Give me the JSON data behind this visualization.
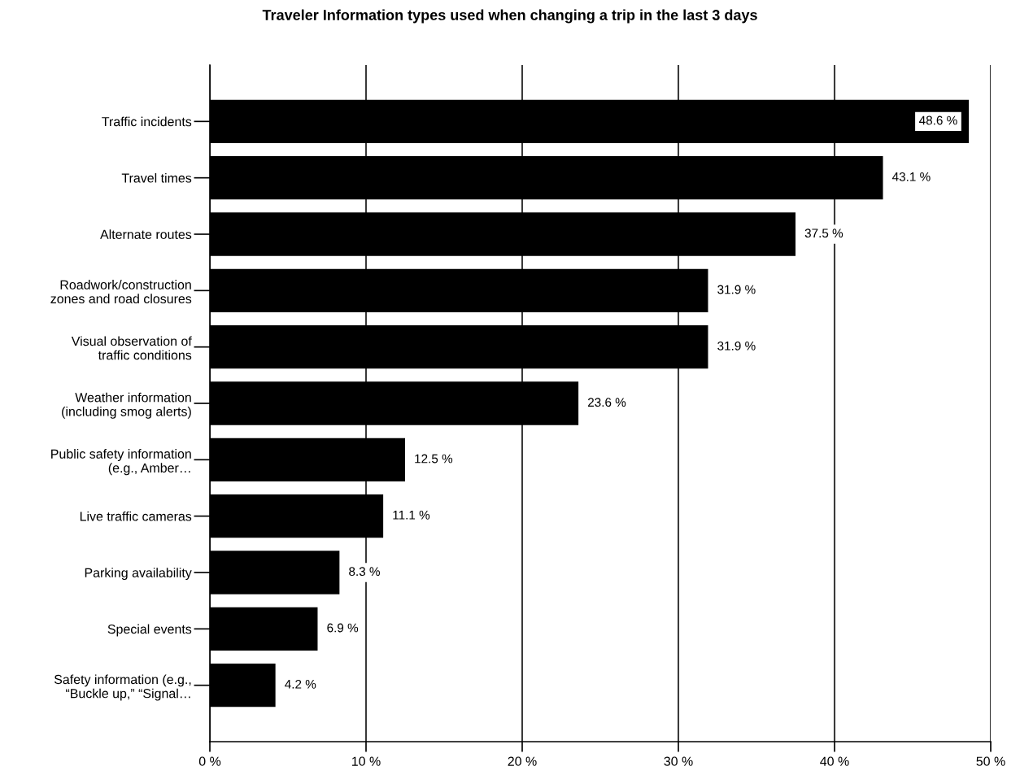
{
  "chart_data": {
    "type": "bar",
    "orientation": "horizontal",
    "title": "Traveler Information types used when changing a trip in the last 3 days",
    "categories": [
      "Traffic incidents",
      "Travel times",
      "Alternate routes",
      "Roadwork/construction\nzones and road closures",
      "Visual observation of\ntraffic conditions",
      "Weather information\n(including smog alerts)",
      "Public safety information\n(e.g., Amber…",
      "Live traffic cameras",
      "Parking availability",
      "Special events",
      "Safety information (e.g.,\n“Buckle up,” “Signal…"
    ],
    "values": [
      48.6,
      43.1,
      37.5,
      31.9,
      31.9,
      23.6,
      12.5,
      11.1,
      8.3,
      6.9,
      4.2
    ],
    "value_labels": [
      "48.6 %",
      "43.1 %",
      "37.5 %",
      "31.9 %",
      "31.9 %",
      "23.6 %",
      "12.5 %",
      "11.1 %",
      "8.3 %",
      "6.9 %",
      "4.2 %"
    ],
    "color": "#000000",
    "xlim": [
      0,
      50
    ],
    "xticks": [
      {
        "value": 0,
        "label": "0 %"
      },
      {
        "value": 10,
        "label": "10 %"
      },
      {
        "value": 20,
        "label": "20 %"
      },
      {
        "value": 30,
        "label": "30 %"
      },
      {
        "value": 40,
        "label": "40 %"
      },
      {
        "value": 50,
        "label": "50 %"
      }
    ],
    "grid": "x"
  }
}
